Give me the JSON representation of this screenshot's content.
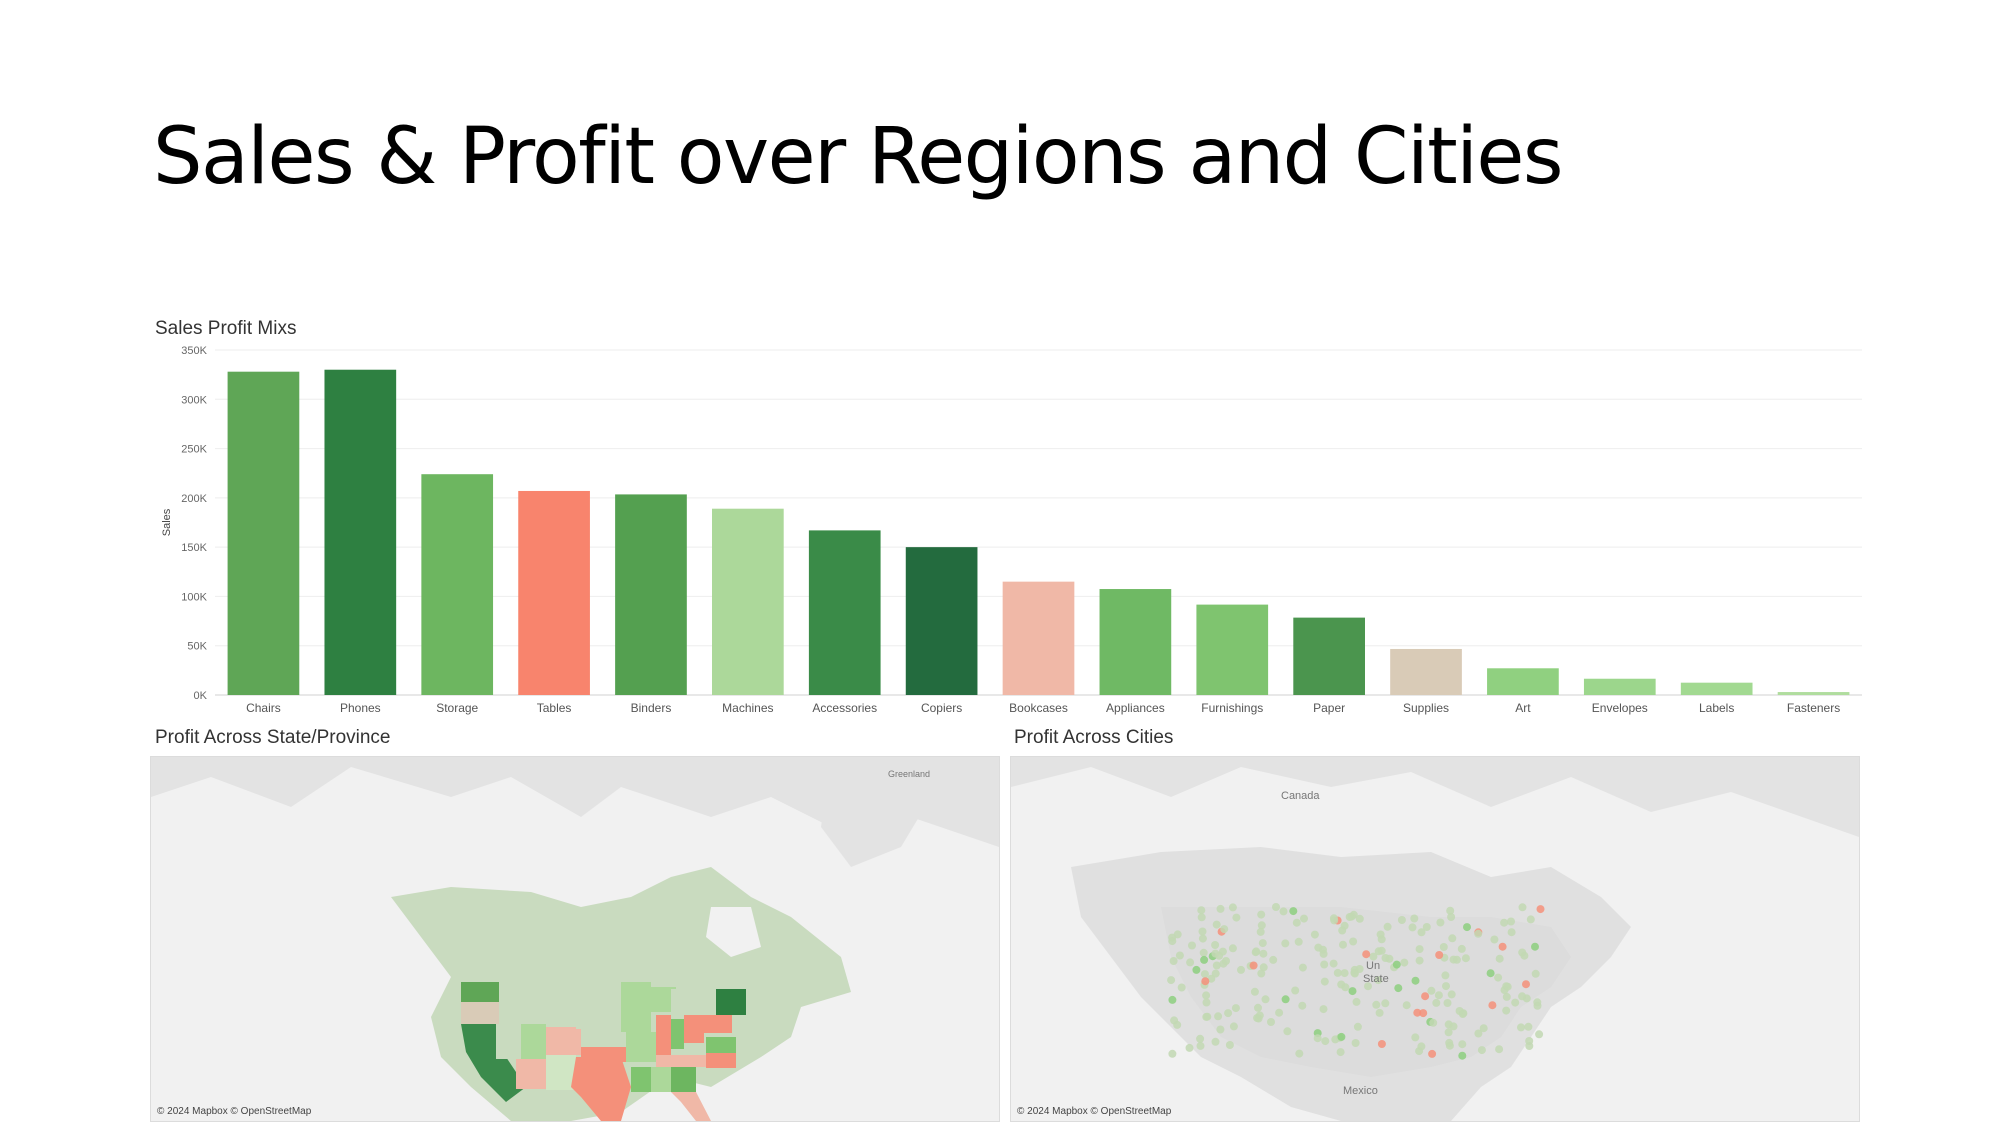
{
  "slide": {
    "title": "Sales & Profit over Regions and Cities"
  },
  "bar_panel": {
    "title": "Sales Profit Mixs"
  },
  "state_panel": {
    "title": "Profit Across State/Province",
    "attribution": "© 2024 Mapbox © OpenStreetMap",
    "labels": {
      "greenland": "Greenland"
    }
  },
  "city_panel": {
    "title": "Profit Across Cities",
    "attribution": "© 2024 Mapbox © OpenStreetMap",
    "labels": {
      "canada": "Canada",
      "us1": "Un",
      "us2": "State",
      "mexico": "Mexico"
    }
  },
  "chart_data": {
    "type": "bar",
    "title": "Sales Profit Mixs",
    "xlabel": "",
    "ylabel": "Sales",
    "ylim": [
      0,
      350000
    ],
    "yticks": [
      0,
      50000,
      100000,
      150000,
      200000,
      250000,
      300000,
      350000
    ],
    "ytick_labels": [
      "0K",
      "50K",
      "100K",
      "150K",
      "200K",
      "250K",
      "300K",
      "350K"
    ],
    "grid": true,
    "categories": [
      "Chairs",
      "Phones",
      "Storage",
      "Tables",
      "Binders",
      "Machines",
      "Accessories",
      "Copiers",
      "Bookcases",
      "Appliances",
      "Furnishings",
      "Paper",
      "Supplies",
      "Art",
      "Envelopes",
      "Labels",
      "Fasteners"
    ],
    "values": [
      328000,
      330000,
      224000,
      207000,
      203500,
      189000,
      167000,
      150000,
      115000,
      107500,
      91700,
      78500,
      46700,
      27100,
      16500,
      12500,
      3000
    ],
    "colors": [
      "#5fa656",
      "#2e8041",
      "#6db660",
      "#f8846d",
      "#54a050",
      "#acd89a",
      "#3a8b48",
      "#236b3e",
      "#f0b8a7",
      "#6fb964",
      "#7fc46f",
      "#4b954e",
      "#d9cbb7",
      "#90d080",
      "#9cd68c",
      "#a2d991",
      "#b0dd9e"
    ]
  }
}
